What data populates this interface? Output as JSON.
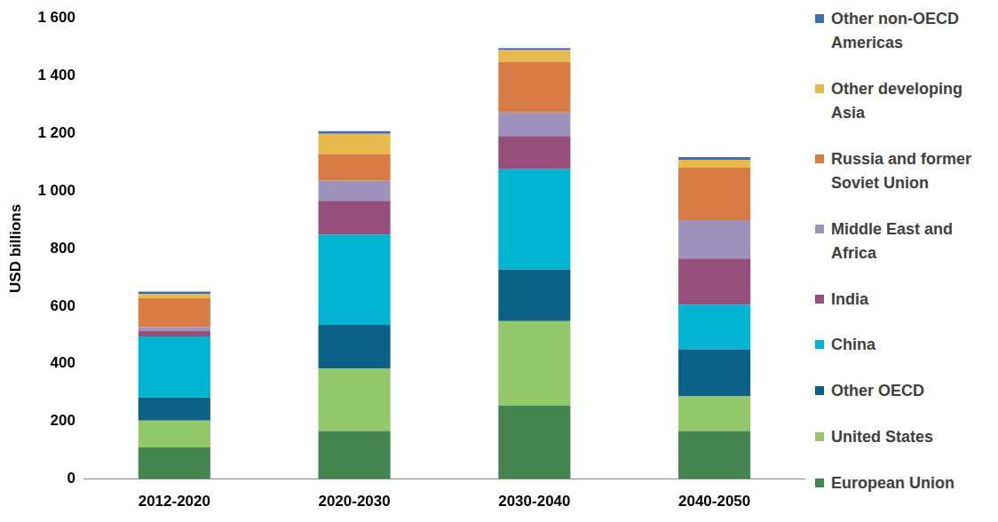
{
  "chart_data": {
    "type": "bar",
    "stacked": true,
    "grid": false,
    "legend": "right",
    "y_label": "USD billions",
    "categories": [
      "2012-2020",
      "2020-2030",
      "2030-2040",
      "2040-2050"
    ],
    "ylim": [
      0,
      1600
    ],
    "yticks": [
      0,
      200,
      400,
      600,
      800,
      {
        "value": 1000,
        "label": "1 000"
      },
      {
        "value": 1200,
        "label": "1 200"
      },
      {
        "value": 1400,
        "label": "1 400"
      },
      {
        "value": 1600,
        "label": "1 600"
      }
    ],
    "series": [
      {
        "name": "European Union",
        "color": "#44844f",
        "values": [
          110,
          167,
          255,
          167
        ]
      },
      {
        "name": "United States",
        "color": "#92c86a",
        "values": [
          93,
          216,
          293,
          120
        ]
      },
      {
        "name": "Other OECD",
        "color": "#0b6185",
        "values": [
          80,
          152,
          179,
          163
        ]
      },
      {
        "name": "China",
        "color": "#00b4d2",
        "values": [
          212,
          313,
          348,
          155
        ]
      },
      {
        "name": "India",
        "color": "#944f7b",
        "values": [
          20,
          117,
          115,
          160
        ]
      },
      {
        "name": "Middle East and Africa",
        "color": "#9d93bd",
        "values": [
          12,
          70,
          82,
          133
        ]
      },
      {
        "name": "Russia and former Soviet Union",
        "color": "#d97b45",
        "values": [
          100,
          93,
          175,
          182
        ]
      },
      {
        "name": "Other developing Asia",
        "color": "#e8b94d",
        "values": [
          15,
          70,
          41,
          28
        ]
      },
      {
        "name": "Other non-OECD Americas",
        "color": "#3d6fb0",
        "values": [
          8,
          9,
          7,
          9
        ]
      }
    ]
  }
}
